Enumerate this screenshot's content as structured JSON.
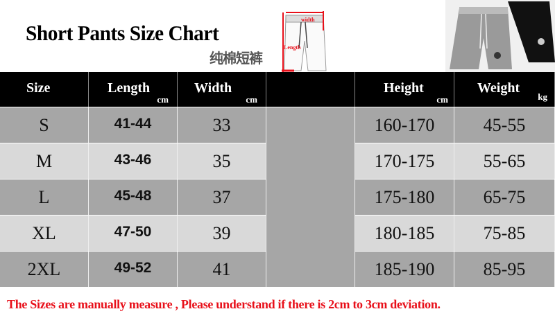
{
  "title": "Short Pants Size Chart",
  "subtitle": "纯棉短裤",
  "diagram": {
    "width_label": "width",
    "length_label": "Length",
    "accent": "#e8101a"
  },
  "headers": [
    {
      "label": "Size",
      "unit": ""
    },
    {
      "label": "Length",
      "unit": "cm"
    },
    {
      "label": "Width",
      "unit": "cm"
    },
    {
      "label": "",
      "unit": ""
    },
    {
      "label": "Height",
      "unit": "cm"
    },
    {
      "label": "Weight",
      "unit": "kg"
    }
  ],
  "rows": [
    {
      "size": "S",
      "length": "41-44",
      "width": "33",
      "height": "160-170",
      "weight": "45-55"
    },
    {
      "size": "M",
      "length": "43-46",
      "width": "35",
      "height": "170-175",
      "weight": "55-65"
    },
    {
      "size": "L",
      "length": "45-48",
      "width": "37",
      "height": "175-180",
      "weight": "65-75"
    },
    {
      "size": "XL",
      "length": "47-50",
      "width": "39",
      "height": "180-185",
      "weight": "75-85"
    },
    {
      "size": "2XL",
      "length": "49-52",
      "width": "41",
      "height": "185-190",
      "weight": "85-95"
    }
  ],
  "note": "The Sizes are manually measure , Please understand if  there is 2cm to 3cm deviation.",
  "colors": {
    "row_dark": "#a6a6a6",
    "row_light": "#d9d9d9",
    "header": "#000000",
    "note": "#e8101a"
  }
}
